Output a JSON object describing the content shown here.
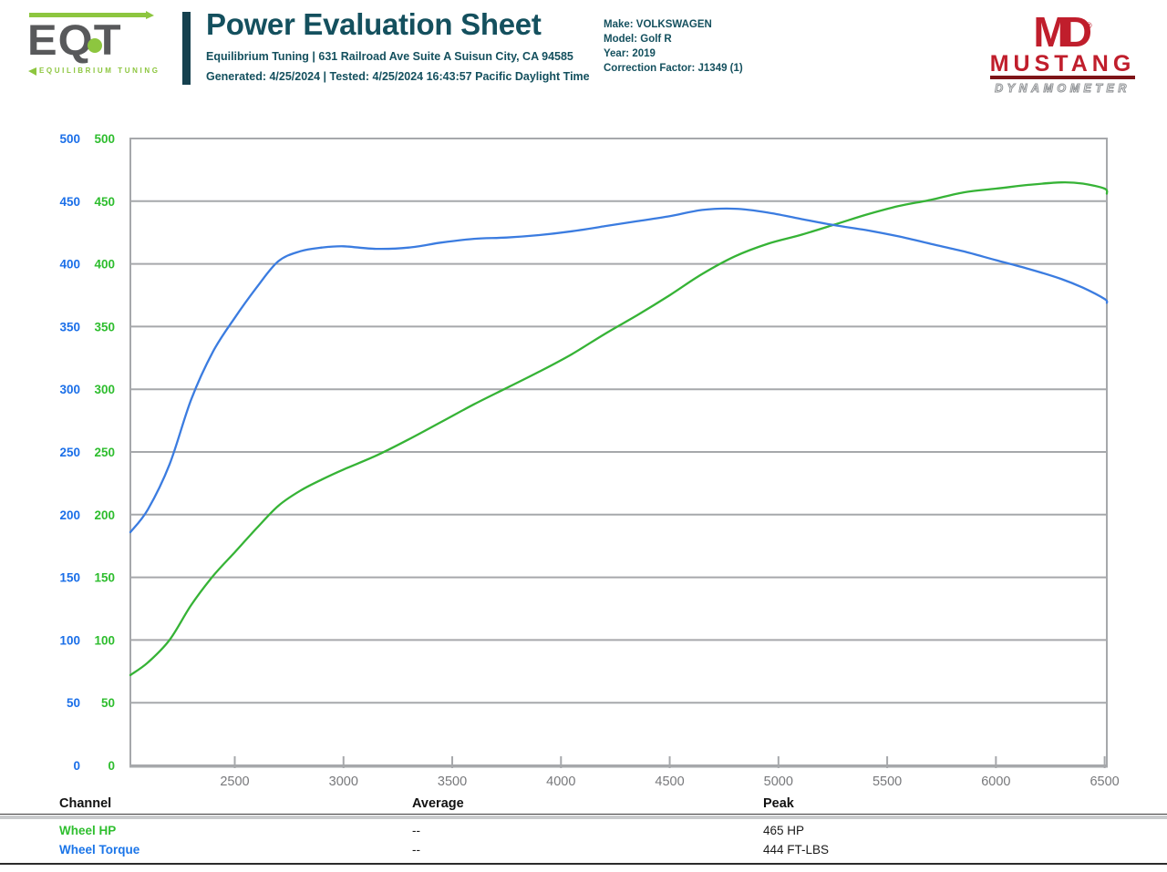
{
  "header": {
    "logo": {
      "text": "EQT",
      "subtext": "EQUILIBRIUM TUNING",
      "gray": "#58595B",
      "green": "#8DC63F"
    },
    "title": "Power Evaluation Sheet",
    "address_line": "Equilibrium Tuning | 631 Railroad Ave Suite A Suisun City, CA 94585",
    "generated_line": "Generated: 4/25/2024 | Tested: 4/25/2024 16:43:57 Pacific Daylight Time",
    "vehicle": {
      "lines": [
        "Make: VOLKSWAGEN",
        "Model: Golf R",
        "Year: 2019",
        "Correction Factor: J1349 (1)"
      ]
    },
    "dyno_logo": {
      "monogram": "MD",
      "registered": "®",
      "brand": "MUSTANG",
      "sub": "DYNAMOMETER",
      "red": "#C01E2C"
    }
  },
  "chart_data": {
    "type": "line",
    "title": "",
    "xlabel": "",
    "ylabel": "",
    "xlim": [
      2020,
      6510
    ],
    "ylim": [
      0,
      500
    ],
    "x_ticks": [
      2500,
      3000,
      3500,
      4000,
      4500,
      5000,
      5500,
      6000,
      6500
    ],
    "y_ticks": [
      0,
      50,
      100,
      150,
      200,
      250,
      300,
      350,
      400,
      450,
      500
    ],
    "grid": "horizontal",
    "legend_position": "none",
    "x": [
      2020,
      2100,
      2200,
      2300,
      2400,
      2500,
      2600,
      2700,
      2800,
      2900,
      3000,
      3150,
      3300,
      3450,
      3600,
      3750,
      3900,
      4050,
      4200,
      4350,
      4500,
      4650,
      4800,
      4950,
      5100,
      5252,
      5400,
      5550,
      5700,
      5850,
      6000,
      6150,
      6300,
      6400,
      6500,
      6510
    ],
    "series": [
      {
        "name": "Wheel HP",
        "unit": "HP",
        "color": "#36B336",
        "tick_color": "#2EBD2E",
        "values": [
          72,
          82,
          100,
          128,
          151,
          170,
          189,
          207,
          219,
          228,
          236,
          247,
          260,
          274,
          288,
          301,
          314,
          328,
          344,
          359,
          375,
          392,
          406,
          416,
          423,
          431,
          439,
          446,
          451,
          457,
          460,
          463,
          465,
          464,
          460,
          456
        ]
      },
      {
        "name": "Wheel Torque",
        "unit": "FT-LBS",
        "color": "#3B7CE0",
        "tick_color": "#1B6FE8",
        "values": [
          186,
          204,
          240,
          292,
          330,
          357,
          381,
          402,
          410,
          413,
          414,
          412,
          413,
          417,
          420,
          421,
          423,
          426,
          430,
          434,
          438,
          443,
          444,
          441,
          436,
          431,
          427,
          422,
          416,
          410,
          403,
          396,
          388,
          381,
          372,
          369
        ]
      }
    ],
    "axis_colors": {
      "x_tick_label": "#77787B",
      "grid": "#A6A8AB"
    }
  },
  "summary_table": {
    "columns": {
      "channel": "Channel",
      "average": "Average",
      "peak": "Peak"
    },
    "rows": [
      {
        "channel": "Wheel HP",
        "average": "--",
        "peak": "465 HP",
        "color": "#2FBF2F"
      },
      {
        "channel": "Wheel Torque",
        "average": "--",
        "peak": "444 FT-LBS",
        "color": "#1B75E8"
      }
    ]
  }
}
